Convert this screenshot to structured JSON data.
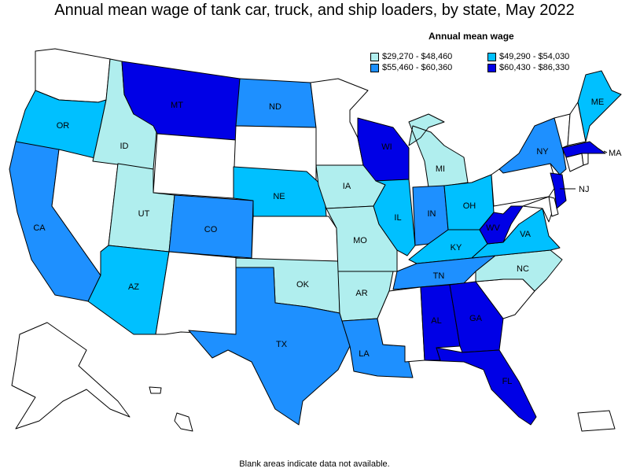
{
  "title": "Annual mean wage of tank car, truck, and ship loaders, by state, May 2022",
  "footnote": "Blank areas indicate data not available.",
  "legend": {
    "title": "Annual mean wage",
    "items": [
      {
        "label": "$29,270 - $48,460",
        "color": "#b0eeee"
      },
      {
        "label": "$49,290 - $54,030",
        "color": "#00c0ff"
      },
      {
        "label": "$55,460 - $60,360",
        "color": "#1e90ff"
      },
      {
        "label": "$60,430 - $86,330",
        "color": "#0000e6"
      }
    ]
  },
  "colors": {
    "none": "#ffffff",
    "tier1": "#b0eeee",
    "tier2": "#00c0ff",
    "tier3": "#1e90ff",
    "tier4": "#0000e6"
  },
  "states": {
    "WA": {
      "label": "",
      "tier": "none"
    },
    "OR": {
      "label": "OR",
      "tier": "tier2"
    },
    "CA": {
      "label": "CA",
      "tier": "tier3"
    },
    "NV": {
      "label": "",
      "tier": "none"
    },
    "ID": {
      "label": "ID",
      "tier": "tier1"
    },
    "MT": {
      "label": "MT",
      "tier": "tier4"
    },
    "WY": {
      "label": "",
      "tier": "none"
    },
    "UT": {
      "label": "UT",
      "tier": "tier1"
    },
    "AZ": {
      "label": "AZ",
      "tier": "tier2"
    },
    "CO": {
      "label": "CO",
      "tier": "tier3"
    },
    "NM": {
      "label": "",
      "tier": "none"
    },
    "ND": {
      "label": "ND",
      "tier": "tier3"
    },
    "SD": {
      "label": "",
      "tier": "none"
    },
    "NE": {
      "label": "NE",
      "tier": "tier2"
    },
    "KS": {
      "label": "",
      "tier": "none"
    },
    "OK": {
      "label": "OK",
      "tier": "tier1"
    },
    "TX": {
      "label": "TX",
      "tier": "tier3"
    },
    "MN": {
      "label": "",
      "tier": "none"
    },
    "IA": {
      "label": "IA",
      "tier": "tier1"
    },
    "MO": {
      "label": "MO",
      "tier": "tier1"
    },
    "AR": {
      "label": "AR",
      "tier": "tier1"
    },
    "LA": {
      "label": "LA",
      "tier": "tier3"
    },
    "WI": {
      "label": "WI",
      "tier": "tier4"
    },
    "IL": {
      "label": "IL",
      "tier": "tier2"
    },
    "MI": {
      "label": "MI",
      "tier": "tier1"
    },
    "IN": {
      "label": "IN",
      "tier": "tier3"
    },
    "OH": {
      "label": "OH",
      "tier": "tier2"
    },
    "KY": {
      "label": "KY",
      "tier": "tier2"
    },
    "TN": {
      "label": "TN",
      "tier": "tier3"
    },
    "MS": {
      "label": "",
      "tier": "none"
    },
    "AL": {
      "label": "AL",
      "tier": "tier4"
    },
    "GA": {
      "label": "GA",
      "tier": "tier4"
    },
    "FL": {
      "label": "FL",
      "tier": "tier4"
    },
    "SC": {
      "label": "",
      "tier": "none"
    },
    "NC": {
      "label": "NC",
      "tier": "tier1"
    },
    "VA": {
      "label": "VA",
      "tier": "tier2"
    },
    "WV": {
      "label": "WV",
      "tier": "tier4"
    },
    "PA": {
      "label": "",
      "tier": "none"
    },
    "NY": {
      "label": "NY",
      "tier": "tier3"
    },
    "NJ": {
      "label": "NJ",
      "tier": "tier4"
    },
    "MD": {
      "label": "",
      "tier": "none"
    },
    "DE": {
      "label": "",
      "tier": "none"
    },
    "CT": {
      "label": "",
      "tier": "none"
    },
    "RI": {
      "label": "",
      "tier": "none"
    },
    "MA": {
      "label": "MA",
      "tier": "tier4"
    },
    "VT": {
      "label": "",
      "tier": "none"
    },
    "NH": {
      "label": "",
      "tier": "none"
    },
    "ME": {
      "label": "ME",
      "tier": "tier2"
    },
    "AK": {
      "label": "",
      "tier": "none"
    },
    "HI": {
      "label": "",
      "tier": "none"
    },
    "PR": {
      "label": "",
      "tier": "none"
    }
  }
}
